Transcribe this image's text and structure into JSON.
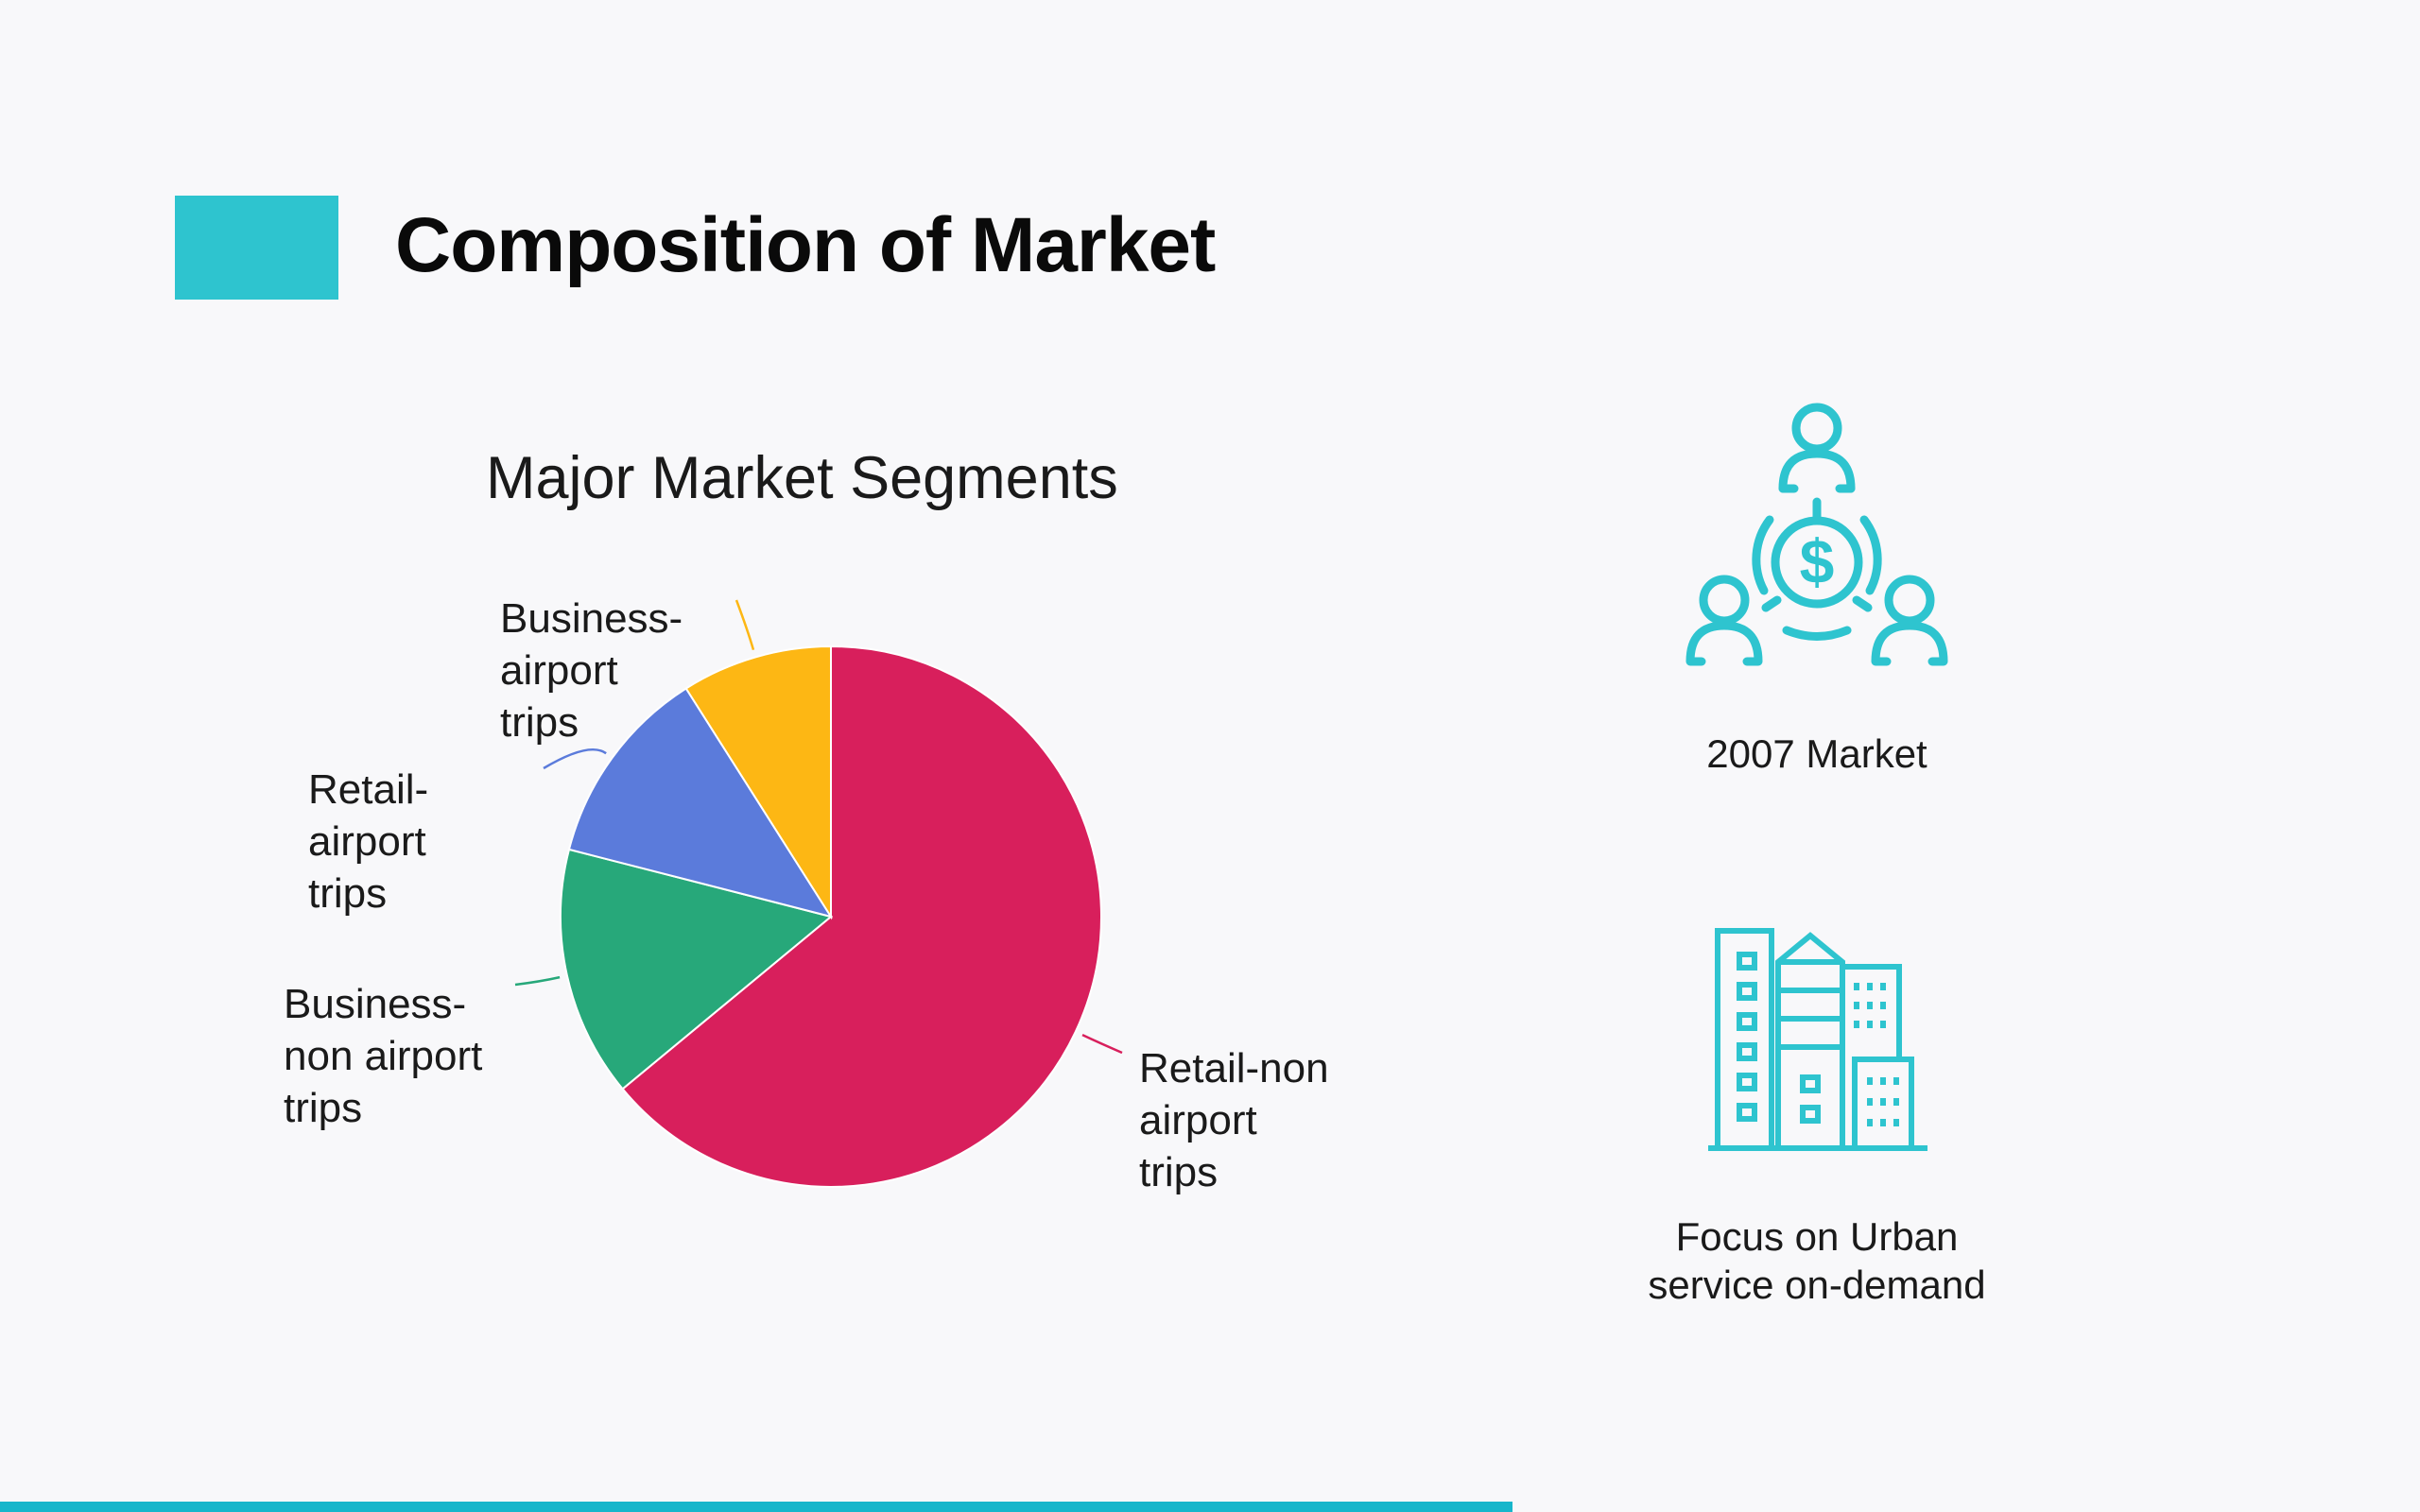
{
  "slide": {
    "title": "Composition of Market",
    "accent_color": "#2ec4cf",
    "progress_fraction": 0.625
  },
  "chart_data": {
    "type": "pie",
    "title": "Major Market Segments",
    "start_angle_deg": 0,
    "direction": "clockwise",
    "categories": [
      "Retail-non airport trips",
      "Business-non airport trips",
      "Retail-airport trips",
      "Business-airport trips"
    ],
    "values": [
      64,
      15,
      12,
      9
    ],
    "colors": [
      "#d81f5c",
      "#27a87a",
      "#5b7bdb",
      "#fdb714"
    ],
    "labels": [
      {
        "text": "Retail-non\nairport\ntrips"
      },
      {
        "text": "Business-\nnon airport\ntrips"
      },
      {
        "text": "Retail-\nairport\ntrips"
      },
      {
        "text": "Business-\nairport\ntrips"
      }
    ],
    "legend": "none"
  },
  "side": {
    "market_caption": "2007 Market",
    "market_icon": "people-money-icon",
    "urban_caption_1": "Focus on Urban",
    "urban_caption_2": "service on-demand",
    "urban_icon": "city-buildings-icon",
    "icon_color": "#2ec4cf"
  }
}
